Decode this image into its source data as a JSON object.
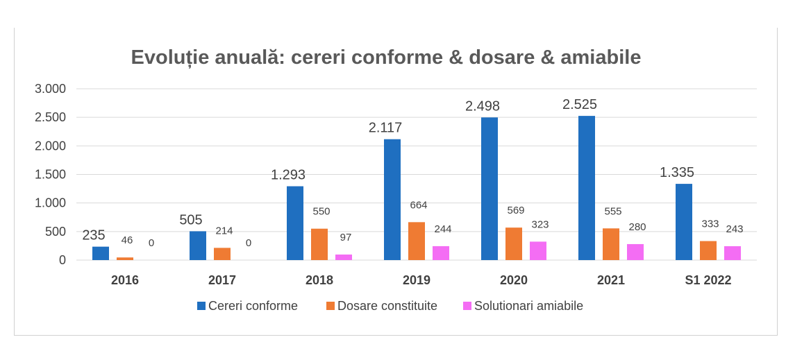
{
  "colors": {
    "series_0": "#1f6fc0",
    "series_1": "#ef7b33",
    "series_2": "#f46df4",
    "text": "#404040",
    "title": "#595959",
    "grid": "#d9d9d9"
  },
  "chart_data": {
    "type": "bar",
    "title": "Evoluție anuală: cereri conforme & dosare & amiabile",
    "xlabel": "",
    "ylabel": "",
    "ylim": [
      0,
      3000
    ],
    "yticks": [
      0,
      500,
      1000,
      1500,
      2000,
      2500,
      3000
    ],
    "ytick_labels": [
      "0",
      "500",
      "1.000",
      "1.500",
      "2.000",
      "2.500",
      "3.000"
    ],
    "grid": true,
    "legend_position": "bottom",
    "categories": [
      "2016",
      "2017",
      "2018",
      "2019",
      "2020",
      "2021",
      "S1 2022"
    ],
    "series": [
      {
        "name": "Cereri conforme",
        "values": [
          235,
          505,
          1293,
          2117,
          2498,
          2525,
          1335
        ],
        "labels": [
          "235",
          "505",
          "1.293",
          "2.117",
          "2.498",
          "2.525",
          "1.335"
        ]
      },
      {
        "name": "Dosare constituite",
        "values": [
          46,
          214,
          550,
          664,
          569,
          555,
          333
        ],
        "labels": [
          "46",
          "214",
          "550",
          "664",
          "569",
          "555",
          "333"
        ]
      },
      {
        "name": "Solutionari amiabile",
        "values": [
          0,
          0,
          97,
          244,
          323,
          280,
          243
        ],
        "labels": [
          "0",
          "0",
          "97",
          "244",
          "323",
          "280",
          "243"
        ]
      }
    ]
  }
}
